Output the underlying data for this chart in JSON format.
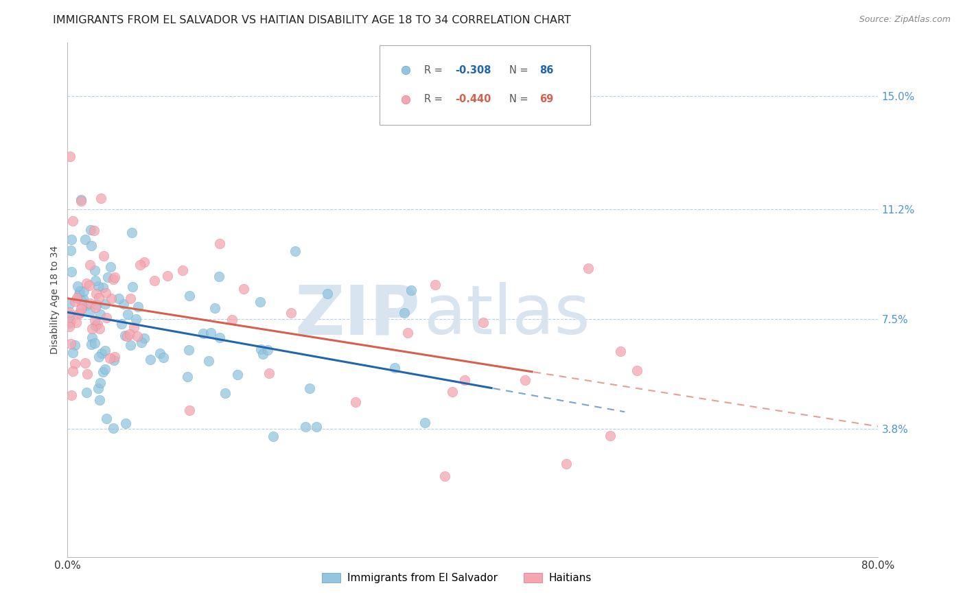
{
  "title": "IMMIGRANTS FROM EL SALVADOR VS HAITIAN DISABILITY AGE 18 TO 34 CORRELATION CHART",
  "source": "Source: ZipAtlas.com",
  "ylabel": "Disability Age 18 to 34",
  "ytick_labels": [
    "3.8%",
    "7.5%",
    "11.2%",
    "15.0%"
  ],
  "ytick_values": [
    0.038,
    0.075,
    0.112,
    0.15
  ],
  "xmin": 0.0,
  "xmax": 0.8,
  "ymin": -0.005,
  "ymax": 0.168,
  "legend_blue_r": "R = -0.308",
  "legend_blue_n": "N = 86",
  "legend_pink_r": "R = -0.440",
  "legend_pink_n": "N = 69",
  "legend_label_blue": "Immigrants from El Salvador",
  "legend_label_pink": "Haitians",
  "blue_color": "#92c5de",
  "pink_color": "#f4a6b0",
  "blue_edge_color": "#5a9cc5",
  "pink_edge_color": "#e07080",
  "trend_blue_color": "#2166ac",
  "trend_pink_color": "#d6604d",
  "watermark_zip": "ZIP",
  "watermark_atlas": "atlas",
  "watermark_color": "#d8e4f0",
  "title_fontsize": 11.5,
  "source_fontsize": 9,
  "axis_label_fontsize": 10,
  "tick_fontsize": 11,
  "legend_fontsize": 11
}
